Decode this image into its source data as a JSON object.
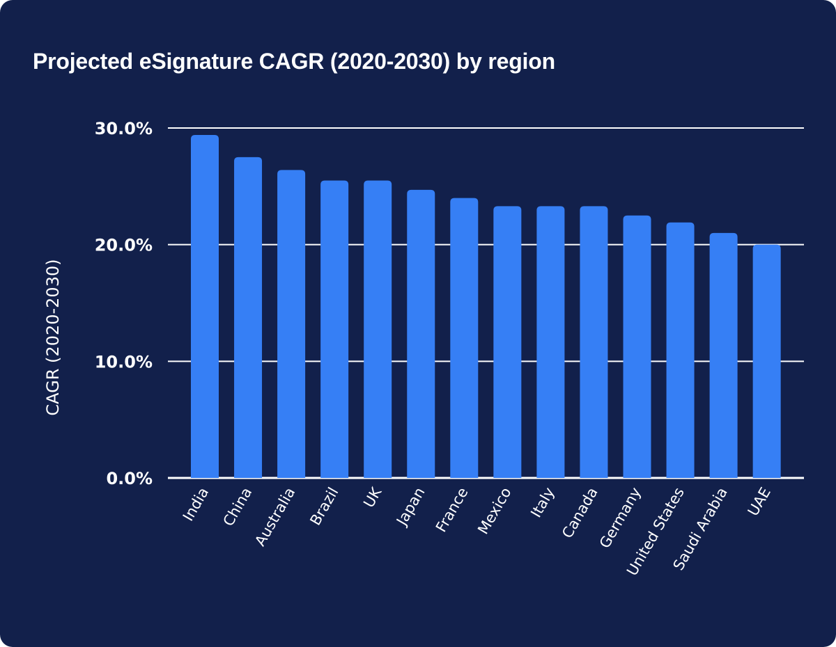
{
  "chart_data": {
    "type": "bar",
    "title": "Projected eSignature CAGR (2020-2030) by region",
    "xlabel": "",
    "ylabel": "CAGR (2020-2030)",
    "ylim": [
      0,
      30
    ],
    "yticks": [
      0,
      10,
      20,
      30
    ],
    "ytick_labels": [
      "0.0%",
      "10.0%",
      "20.0%",
      "30.0%"
    ],
    "grid": true,
    "categories": [
      "India",
      "China",
      "Australia",
      "Brazil",
      "UK",
      "Japan",
      "France",
      "Mexico",
      "Italy",
      "Canada",
      "Germany",
      "United States",
      "Saudi Arabia",
      "UAE"
    ],
    "values": [
      29.4,
      27.5,
      26.4,
      25.5,
      25.5,
      24.7,
      24.0,
      23.3,
      23.3,
      23.3,
      22.5,
      21.9,
      21.0,
      20.0
    ],
    "colors": {
      "background": "#12204b",
      "bar": "#367ff5",
      "grid": "#ffffff",
      "text": "#ffffff"
    }
  }
}
